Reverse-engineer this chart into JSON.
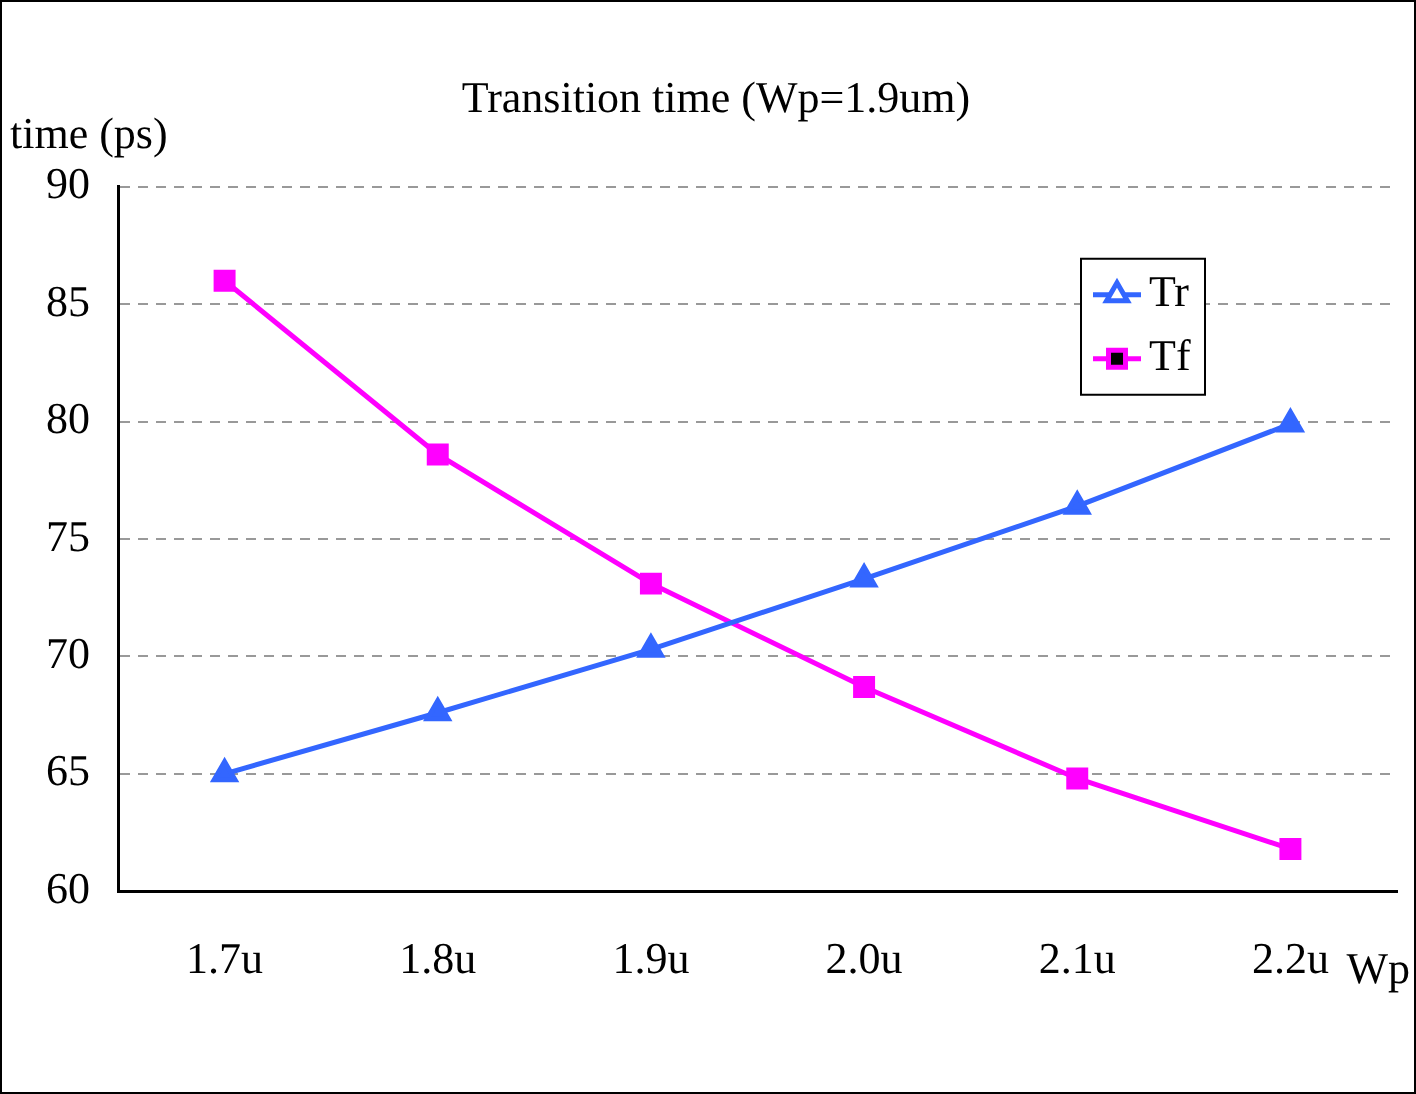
{
  "chart_data": {
    "type": "line",
    "title": "Transition time (Wp=1.9um)",
    "ylabel": "time (ps)",
    "xlabel": "Wp",
    "categories": [
      "1.7u",
      "1.8u",
      "1.9u",
      "2.0u",
      "2.1u",
      "2.2u"
    ],
    "series": [
      {
        "name": "Tr",
        "color": "#3366ff",
        "marker": "triangle",
        "values": [
          65.0,
          67.6,
          70.3,
          73.3,
          76.4,
          79.9
        ]
      },
      {
        "name": "Tf",
        "color": "#ff00ff",
        "marker": "square",
        "values": [
          86.0,
          78.6,
          73.1,
          68.7,
          64.8,
          61.8
        ]
      }
    ],
    "ylim": [
      60,
      90
    ],
    "yticks": [
      60,
      65,
      70,
      75,
      80,
      85,
      90
    ],
    "grid": "y",
    "legend": "top right",
    "line_style": "solid"
  }
}
